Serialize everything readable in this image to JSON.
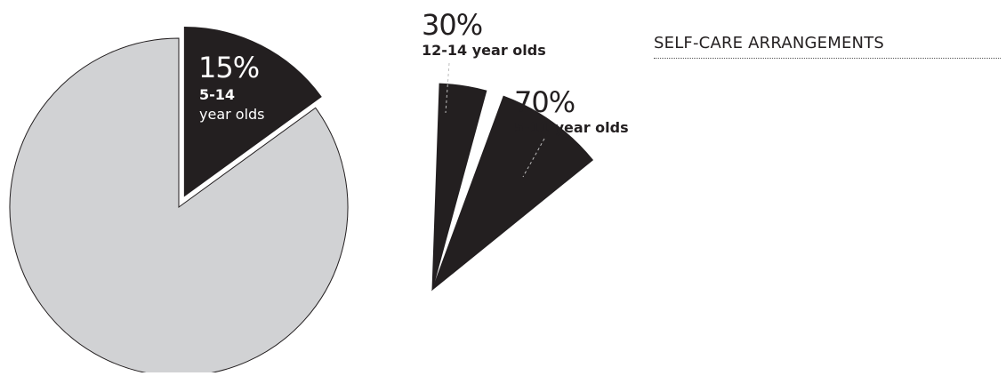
{
  "heading": "SELF-CARE ARRANGEMENTS",
  "colors": {
    "highlight": "#231f20",
    "rest": "#d1d2d4",
    "text_on_dark": "#ffffff",
    "text_on_light": "#231f20"
  },
  "chart_data": [
    {
      "type": "pie",
      "slices": [
        {
          "value": 15,
          "label": "15%",
          "sublabel_lines": [
            "5-14",
            "year olds"
          ],
          "highlighted": true
        },
        {
          "value": 85,
          "label": "",
          "sublabel_lines": [],
          "highlighted": false
        }
      ]
    },
    {
      "type": "pie",
      "slices": [
        {
          "value": 30,
          "label": "30%",
          "sublabel": "12-14 year olds"
        },
        {
          "value": 70,
          "label": "70%",
          "sublabel": "5-11 year olds"
        }
      ]
    }
  ]
}
